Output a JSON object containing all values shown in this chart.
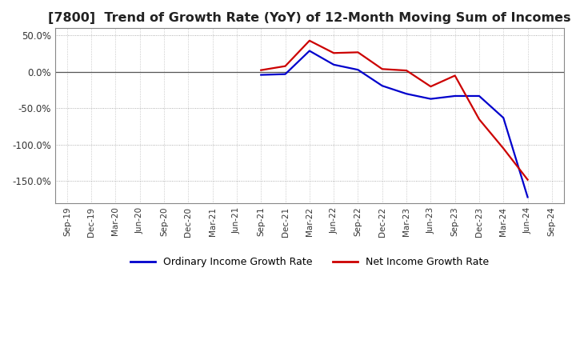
{
  "title": "[7800]  Trend of Growth Rate (YoY) of 12-Month Moving Sum of Incomes",
  "title_fontsize": 11.5,
  "ylim": [
    -180,
    60
  ],
  "yticks": [
    50,
    0,
    -50,
    -100,
    -150
  ],
  "ytick_labels": [
    "50.0%",
    "0.0%",
    "-50.0%",
    "-100.0%",
    "-150.0%"
  ],
  "background_color": "#ffffff",
  "plot_bg_color": "#ffffff",
  "grid_color": "#999999",
  "legend_labels": [
    "Ordinary Income Growth Rate",
    "Net Income Growth Rate"
  ],
  "legend_colors": [
    "#0000cc",
    "#cc0000"
  ],
  "x_labels": [
    "Sep-19",
    "Dec-19",
    "Mar-20",
    "Jun-20",
    "Sep-20",
    "Dec-20",
    "Mar-21",
    "Jun-21",
    "Sep-21",
    "Dec-21",
    "Mar-22",
    "Jun-22",
    "Sep-22",
    "Dec-22",
    "Mar-23",
    "Jun-23",
    "Sep-23",
    "Dec-23",
    "Mar-24",
    "Jun-24",
    "Sep-24"
  ],
  "ordinary_income": [
    null,
    null,
    null,
    null,
    null,
    null,
    null,
    null,
    -4.0,
    -3.0,
    29.0,
    10.0,
    3.0,
    -19.0,
    -30.0,
    -37.0,
    -33.0,
    -33.0,
    -63.0,
    -172.0,
    null
  ],
  "net_income": [
    null,
    null,
    null,
    null,
    null,
    null,
    null,
    null,
    2.5,
    8.0,
    43.0,
    26.0,
    27.0,
    4.0,
    2.0,
    -20.0,
    -5.0,
    -65.0,
    -105.0,
    -148.0,
    null
  ]
}
